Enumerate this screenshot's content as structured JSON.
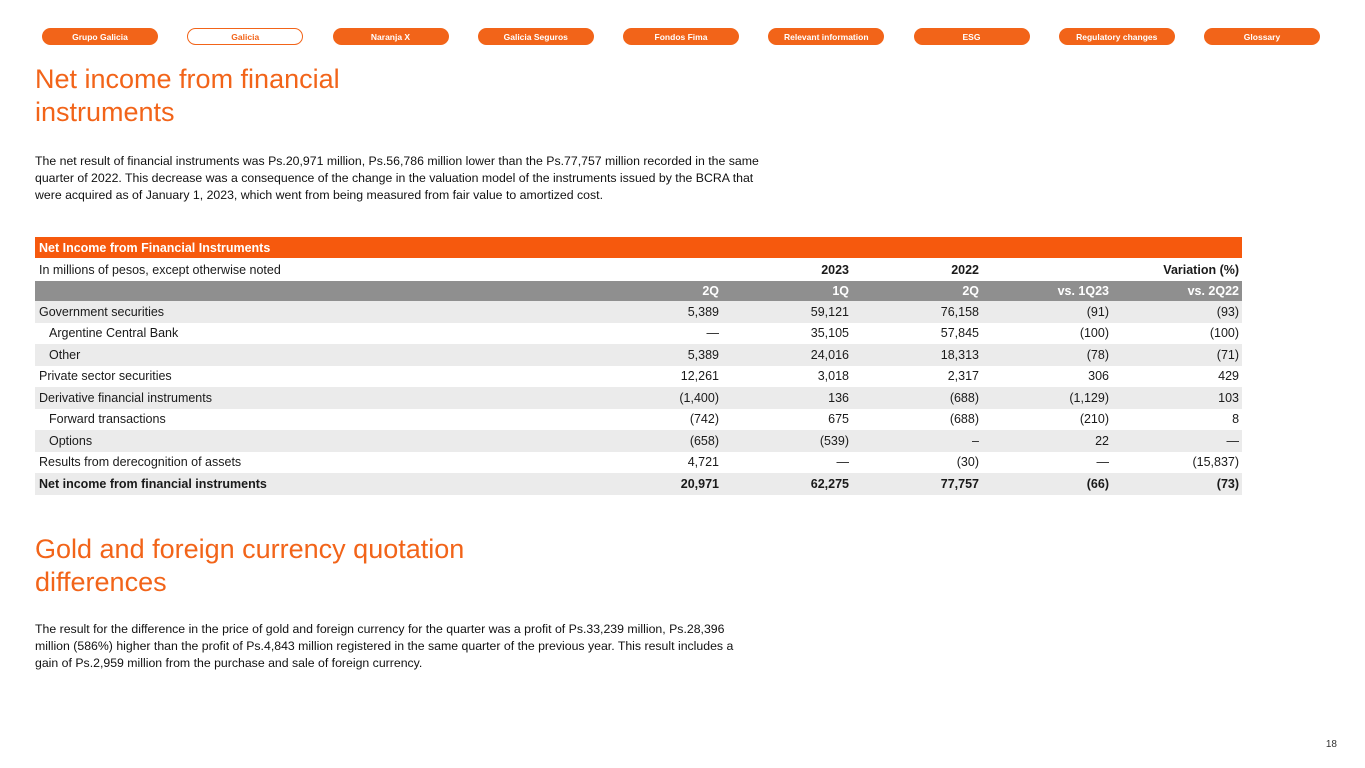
{
  "colors": {
    "accent": "#F26419",
    "table_header": "#F6590D",
    "column_header_bg": "#8F8F8F",
    "row_stripe": "#EBEBEB"
  },
  "nav": {
    "items": [
      {
        "label": "Grupo Galicia",
        "active": false
      },
      {
        "label": "Galicia",
        "active": true
      },
      {
        "label": "Naranja X",
        "active": false
      },
      {
        "label": "Galicia Seguros",
        "active": false
      },
      {
        "label": "Fondos Fima",
        "active": false
      },
      {
        "label": "Relevant information",
        "active": false
      },
      {
        "label": "ESG",
        "active": false
      },
      {
        "label": "Regulatory changes",
        "active": false
      },
      {
        "label": "Glossary",
        "active": false
      }
    ]
  },
  "sections": [
    {
      "title": "Net income from financial instruments",
      "paragraph": "The net result of financial instruments was Ps.20,971 million, Ps.56,786 million lower than the Ps.77,757 million recorded in the same quarter of 2022. This decrease was a consequence of the change in the valuation model of the instruments issued by the BCRA that were acquired as of January 1, 2023, which went from being measured from fair value to amortized cost."
    },
    {
      "title": "Gold and foreign currency quotation differences",
      "paragraph": "The result for the difference in the price of gold and foreign currency for the quarter was a profit of Ps.33,239 million, Ps.28,396 million (586%) higher than the profit of Ps.4,843 million registered in the same quarter of the previous year. This result includes a gain of Ps.2,959 million from the purchase and sale of foreign currency."
    }
  ],
  "table": {
    "title": "Net Income from Financial Instruments",
    "note": "In millions of pesos, except otherwise noted",
    "year_left": "2023",
    "year_right": "2022",
    "variation_label": "Variation (%)",
    "columns": [
      "2Q",
      "1Q",
      "2Q",
      "vs. 1Q23",
      "vs. 2Q22"
    ],
    "rows": [
      {
        "label": "Government securities",
        "indent": false,
        "bold": false,
        "values": [
          "5,389",
          "59,121",
          "76,158",
          "(91)",
          "(93)"
        ]
      },
      {
        "label": "Argentine Central Bank",
        "indent": true,
        "bold": false,
        "values": [
          "—",
          "35,105",
          "57,845",
          "(100)",
          "(100)"
        ]
      },
      {
        "label": "Other",
        "indent": true,
        "bold": false,
        "values": [
          "5,389",
          "24,016",
          "18,313",
          "(78)",
          "(71)"
        ]
      },
      {
        "label": "Private sector securities",
        "indent": false,
        "bold": false,
        "values": [
          "12,261",
          "3,018",
          "2,317",
          "306",
          "429"
        ]
      },
      {
        "label": "Derivative financial instruments",
        "indent": false,
        "bold": false,
        "values": [
          "(1,400)",
          "136",
          "(688)",
          "(1,129)",
          "103"
        ]
      },
      {
        "label": "Forward transactions",
        "indent": true,
        "bold": false,
        "values": [
          "(742)",
          "675",
          "(688)",
          "(210)",
          "8"
        ]
      },
      {
        "label": "Options",
        "indent": true,
        "bold": false,
        "values": [
          "(658)",
          "(539)",
          "–",
          "22",
          "—"
        ]
      },
      {
        "label": "Results from derecognition of assets",
        "indent": false,
        "bold": false,
        "values": [
          "4,721",
          "—",
          "(30)",
          "—",
          "(15,837)"
        ]
      },
      {
        "label": "Net income from financial instruments",
        "indent": false,
        "bold": true,
        "values": [
          "20,971",
          "62,275",
          "77,757",
          "(66)",
          "(73)"
        ]
      }
    ]
  },
  "page_number": "18"
}
